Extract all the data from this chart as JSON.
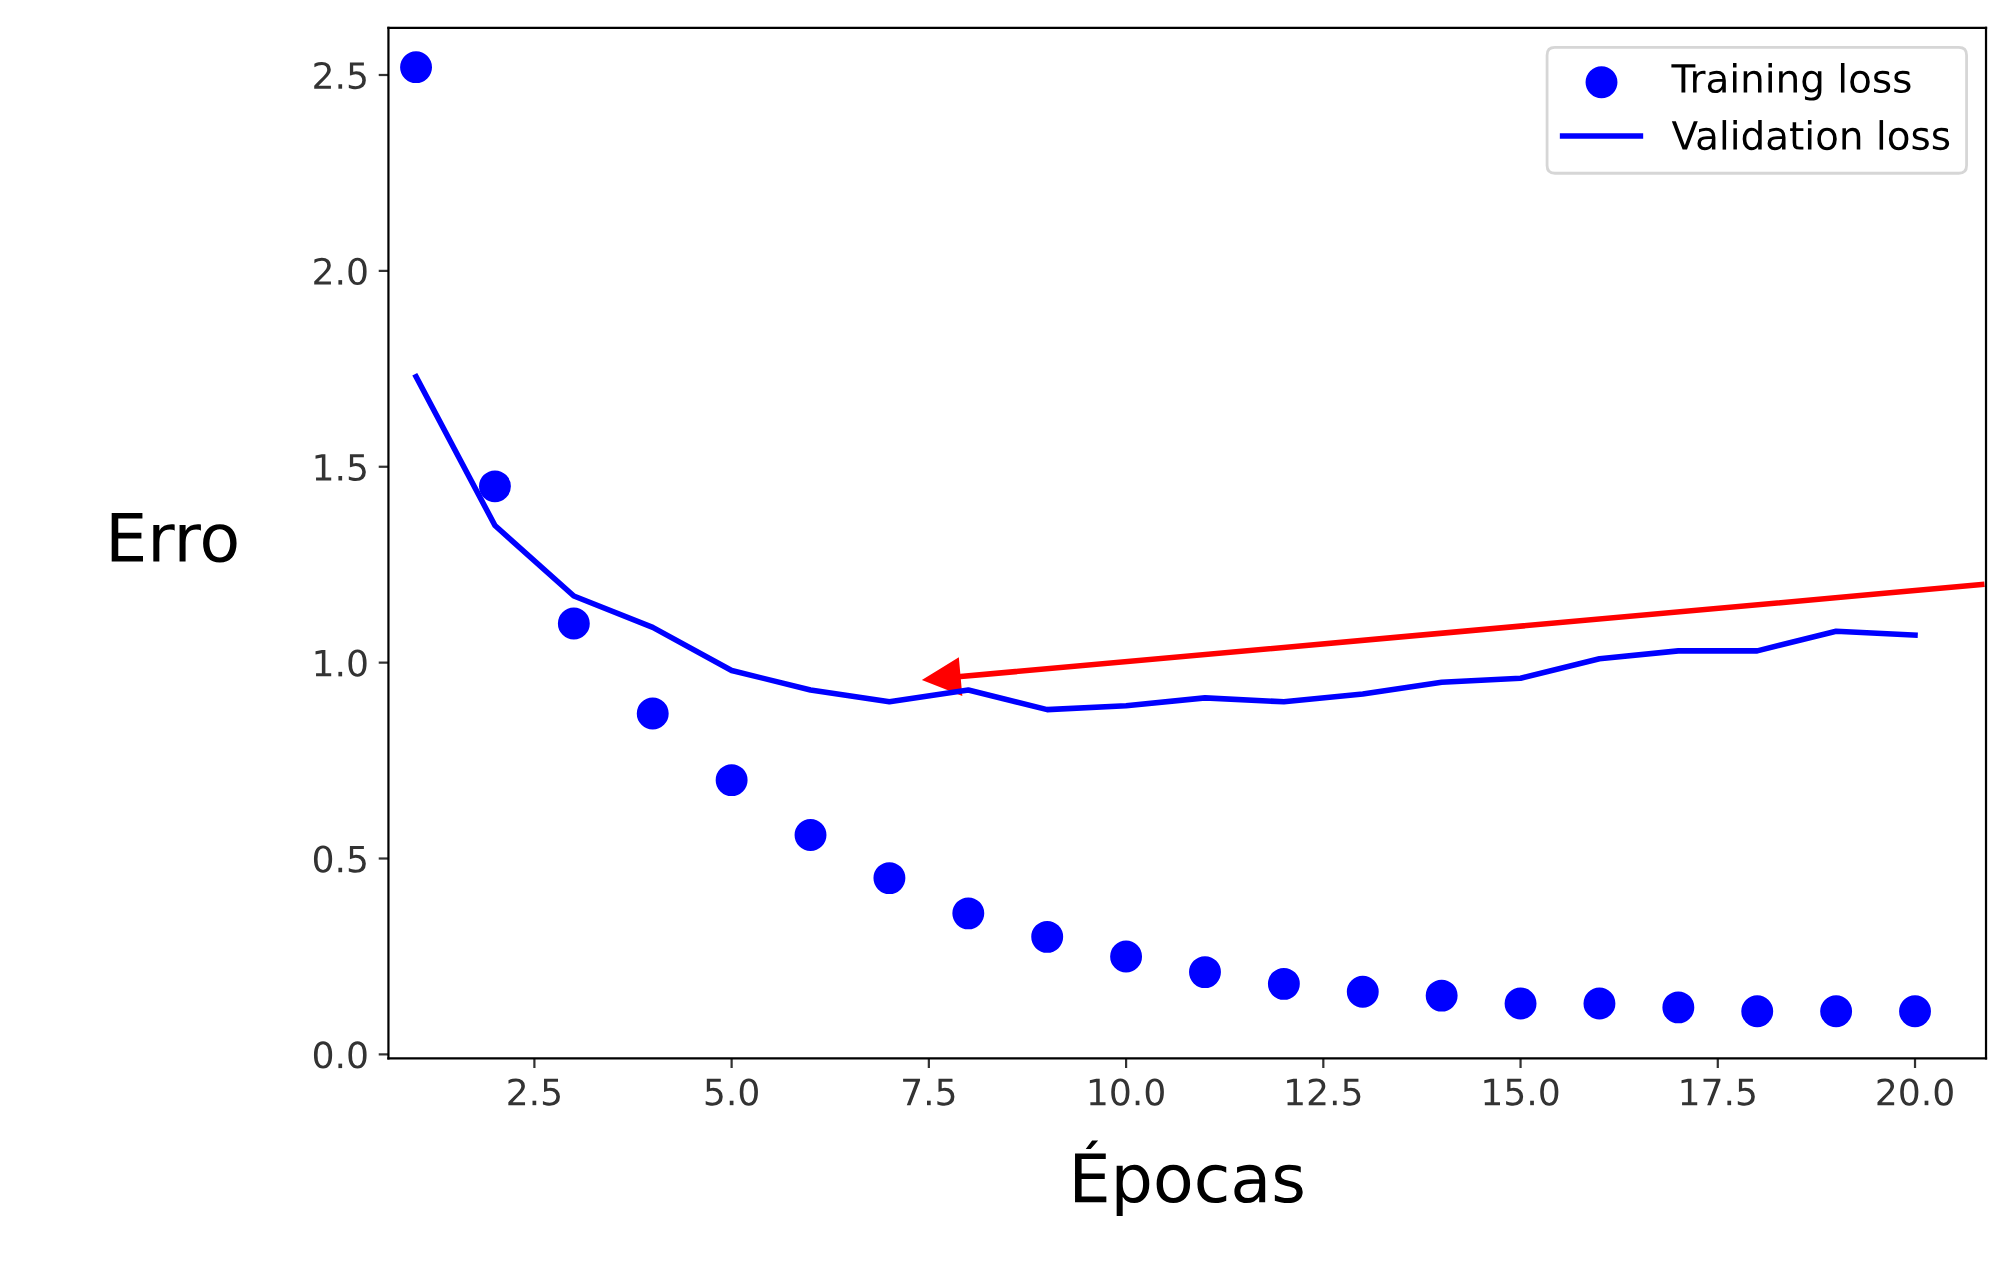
{
  "chart_data": {
    "type": "line",
    "xlabel": "Épocas",
    "ylabel": "Erro",
    "x": [
      1,
      2,
      3,
      4,
      5,
      6,
      7,
      8,
      9,
      10,
      11,
      12,
      13,
      14,
      15,
      16,
      17,
      18,
      19,
      20
    ],
    "series": [
      {
        "name": "Training loss",
        "type": "scatter",
        "color": "#0000ff",
        "marker": "circle",
        "values": [
          2.52,
          1.45,
          1.1,
          0.87,
          0.7,
          0.56,
          0.45,
          0.36,
          0.3,
          0.25,
          0.21,
          0.18,
          0.16,
          0.15,
          0.13,
          0.13,
          0.12,
          0.11,
          0.11,
          0.11
        ]
      },
      {
        "name": "Validation loss",
        "color": "#0000ff",
        "values": [
          1.73,
          1.35,
          1.17,
          1.09,
          0.98,
          0.93,
          0.9,
          0.93,
          0.88,
          0.89,
          0.91,
          0.9,
          0.92,
          0.95,
          0.96,
          1.01,
          1.03,
          1.03,
          1.08,
          1.07
        ]
      }
    ],
    "xlim": [
      0.65,
      20.9
    ],
    "ylim": [
      -0.01,
      2.62
    ],
    "xticks": [
      {
        "value": 2.5,
        "label": "2.5"
      },
      {
        "value": 5,
        "label": "5.0"
      },
      {
        "value": 7.5,
        "label": "7.5"
      },
      {
        "value": 10,
        "label": "10.0"
      },
      {
        "value": 12.5,
        "label": "12.5"
      },
      {
        "value": 15,
        "label": "15.0"
      },
      {
        "value": 17.5,
        "label": "17.5"
      },
      {
        "value": 20,
        "label": "20.0"
      }
    ],
    "yticks": [
      {
        "value": 0,
        "label": "0.0"
      },
      {
        "value": 0.5,
        "label": "0.5"
      },
      {
        "value": 1,
        "label": "1.0"
      },
      {
        "value": 1.5,
        "label": "1.5"
      },
      {
        "value": 2,
        "label": "2.0"
      },
      {
        "value": 2.5,
        "label": "2.5"
      }
    ],
    "legend": "top right",
    "grid": false
  }
}
